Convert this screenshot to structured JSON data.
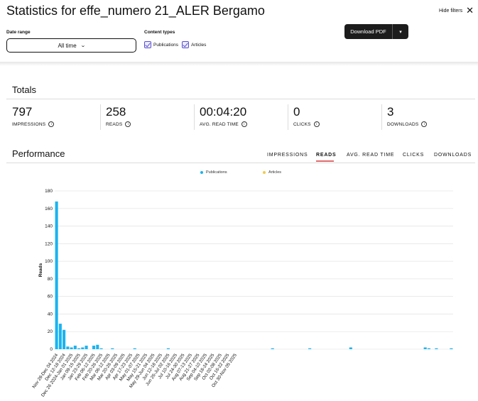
{
  "header": {
    "title": "Statistics for effe_numero 21_ALER Bergamo",
    "hide_filters": "Hide filters",
    "download_label": "Download PDF"
  },
  "filters": {
    "date_range_label": "Date range",
    "date_range_value": "All time",
    "content_types_label": "Content types",
    "types": [
      {
        "label": "Publications",
        "checked": true
      },
      {
        "label": "Articles",
        "checked": true
      }
    ]
  },
  "totals": {
    "title": "Totals",
    "metrics": [
      {
        "value": "797",
        "label": "IMPRESSIONS"
      },
      {
        "value": "258",
        "label": "READS"
      },
      {
        "value": "00:04:20",
        "label": "AVG. READ TIME"
      },
      {
        "value": "0",
        "label": "CLICKS"
      },
      {
        "value": "3",
        "label": "DOWNLOADS"
      }
    ]
  },
  "performance": {
    "title": "Performance",
    "tabs": [
      "IMPRESSIONS",
      "READS",
      "AVG. READ TIME",
      "CLICKS",
      "DOWNLOADS"
    ],
    "active_tab": "READS"
  },
  "colors": {
    "publications": "#1ab3ef",
    "articles": "#f2c94c",
    "active_tab_underline": "#e06b6b"
  },
  "chart_data": {
    "type": "bar",
    "ylabel": "Reads",
    "ylim": [
      0,
      180
    ],
    "yticks": [
      0,
      20,
      40,
      60,
      80,
      100,
      120,
      140,
      160,
      180
    ],
    "grid": true,
    "legend_position": "top-center",
    "x_tick_labels": [
      "Nov 28-Dec 04 2024",
      "Dec 12-18 2024",
      "Dec 26 2024-Jan 01 2025",
      "Jan 09-15 2025",
      "Jan 23-29 2025",
      "Feb 06-12 2025",
      "Feb 20-26 2025",
      "Mar 06-12 2025",
      "Mar 20-26 2025",
      "Apr 03-09 2025",
      "Apr 17-23 2025",
      "May 01-07 2025",
      "May 15-21 2025",
      "May 29-Jun 04 2025",
      "Jun 12-18 2025",
      "Jun 26-Jul 02 2025",
      "Jul 10-16 2025",
      "Jul 24-30 2025",
      "Aug 07-13 2025",
      "Aug 21-27 2025",
      "Sep 04-10 2025",
      "Sep 18-24 2025",
      "Oct 02-08 2025",
      "Oct 16-22 2025",
      "Oct 30-Nov 05 2025"
    ],
    "series": [
      {
        "name": "Publications",
        "values": [
          168,
          29,
          22,
          3,
          2,
          4,
          1,
          2,
          4,
          0,
          4,
          5,
          1,
          0,
          0,
          1,
          0,
          0,
          0,
          0,
          0,
          1,
          0,
          0,
          0,
          0,
          0,
          0,
          0,
          0,
          1,
          0,
          0,
          0,
          0,
          0,
          0,
          0,
          0,
          0,
          0,
          0,
          0,
          0,
          0,
          0,
          0,
          0,
          0,
          0,
          0,
          0,
          0,
          0,
          0,
          0,
          0,
          0,
          1,
          0,
          0,
          0,
          0,
          0,
          0,
          0,
          0,
          0,
          1,
          0,
          0,
          0,
          0,
          0,
          0,
          0,
          0,
          0,
          0,
          2,
          0,
          0,
          0,
          0,
          0,
          0,
          0,
          0,
          0,
          0,
          0,
          0,
          0,
          0,
          0,
          0,
          0,
          0,
          0,
          2,
          1,
          0,
          1,
          0,
          0,
          0,
          1
        ]
      },
      {
        "name": "Articles",
        "values": []
      }
    ]
  }
}
